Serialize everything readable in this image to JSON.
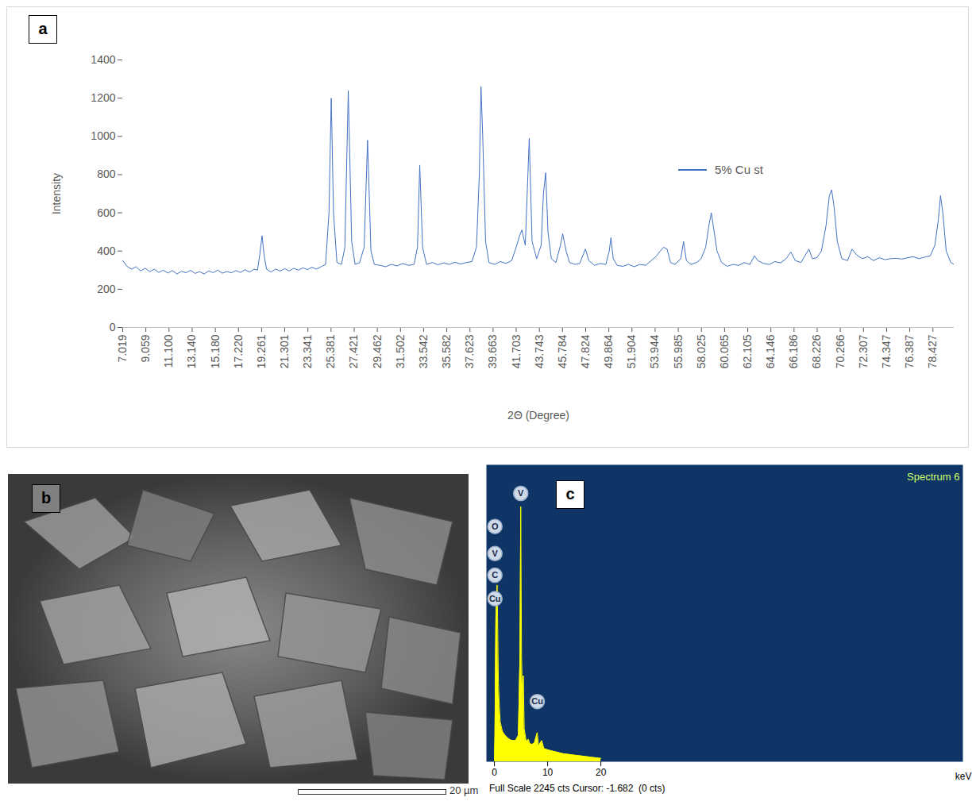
{
  "chart_data": [
    {
      "panel": "a",
      "type": "line",
      "x_label": "2Θ (Degree)",
      "y_label": "Intensity",
      "xlim": [
        7.019,
        80.3
      ],
      "xticks": [
        7.019,
        9.059,
        {
          "value": 11.1,
          "label": "11.100"
        },
        {
          "value": 13.14,
          "label": "13.140"
        },
        {
          "value": 15.18,
          "label": "15.180"
        },
        {
          "value": 17.22,
          "label": "17.220"
        },
        19.261,
        21.301,
        23.341,
        25.381,
        27.421,
        29.462,
        31.502,
        33.542,
        35.582,
        37.623,
        39.663,
        41.703,
        43.743,
        45.784,
        47.824,
        49.864,
        51.904,
        53.944,
        55.985,
        58.025,
        60.065,
        62.105,
        64.146,
        66.186,
        68.226,
        70.266,
        72.307,
        74.347,
        76.387,
        78.427
      ],
      "ylim": [
        0,
        1400
      ],
      "yticks": [
        0,
        200,
        400,
        600,
        800,
        1000,
        1200,
        1400
      ],
      "grid": false,
      "legend": "top-right",
      "series": [
        {
          "name": "5% Cu st",
          "color": "#4472c4",
          "x": [
            7.02,
            7.4,
            7.8,
            8.2,
            8.6,
            9.0,
            9.4,
            9.8,
            10.2,
            10.6,
            11.0,
            11.4,
            11.8,
            12.2,
            12.6,
            13.0,
            13.4,
            13.8,
            14.2,
            14.6,
            15.0,
            15.4,
            15.8,
            16.2,
            16.6,
            17.0,
            17.4,
            17.8,
            18.2,
            18.6,
            18.9,
            19.1,
            19.3,
            19.5,
            19.7,
            20.1,
            20.5,
            20.9,
            21.3,
            21.7,
            22.1,
            22.5,
            22.9,
            23.3,
            23.7,
            24.1,
            24.5,
            24.9,
            25.2,
            25.4,
            25.6,
            25.9,
            26.3,
            26.6,
            26.9,
            27.2,
            27.5,
            27.9,
            28.3,
            28.6,
            28.9,
            29.2,
            29.7,
            30.2,
            30.7,
            31.2,
            31.7,
            32.2,
            32.7,
            33.0,
            33.2,
            33.45,
            33.8,
            34.3,
            34.8,
            35.3,
            35.8,
            36.3,
            36.8,
            37.3,
            37.8,
            38.2,
            38.45,
            38.6,
            38.75,
            39.0,
            39.3,
            39.8,
            40.3,
            40.8,
            41.3,
            41.7,
            42.0,
            42.2,
            42.5,
            42.85,
            43.1,
            43.5,
            43.9,
            44.1,
            44.3,
            44.5,
            44.8,
            45.2,
            45.6,
            45.8,
            46.1,
            46.4,
            46.9,
            47.3,
            47.6,
            47.8,
            48.1,
            48.6,
            49.1,
            49.6,
            49.9,
            50.05,
            50.25,
            50.6,
            51.1,
            51.6,
            52.1,
            52.6,
            53.1,
            53.6,
            54.0,
            54.4,
            54.7,
            55.0,
            55.3,
            55.7,
            56.2,
            56.45,
            56.7,
            57.1,
            57.6,
            58.0,
            58.4,
            58.7,
            58.9,
            59.1,
            59.4,
            59.8,
            60.3,
            60.8,
            61.3,
            61.8,
            62.3,
            62.7,
            63.0,
            63.5,
            64.0,
            64.5,
            65.0,
            65.5,
            65.9,
            66.3,
            66.8,
            67.2,
            67.5,
            67.8,
            68.2,
            68.6,
            69.0,
            69.3,
            69.5,
            69.7,
            70.0,
            70.4,
            70.9,
            71.3,
            71.7,
            72.2,
            72.7,
            73.2,
            73.7,
            74.2,
            74.7,
            75.2,
            75.7,
            76.2,
            76.7,
            77.2,
            77.7,
            78.2,
            78.6,
            78.9,
            79.1,
            79.3,
            79.6,
            80.0,
            80.3
          ],
          "values": [
            350,
            320,
            305,
            318,
            296,
            310,
            292,
            305,
            288,
            300,
            285,
            298,
            280,
            294,
            286,
            299,
            283,
            292,
            280,
            296,
            287,
            300,
            284,
            293,
            286,
            298,
            288,
            302,
            290,
            305,
            300,
            380,
            480,
            370,
            305,
            290,
            306,
            295,
            308,
            296,
            310,
            300,
            312,
            303,
            315,
            305,
            318,
            330,
            600,
            1200,
            600,
            340,
            330,
            420,
            1240,
            450,
            330,
            340,
            420,
            980,
            400,
            330,
            325,
            318,
            330,
            322,
            335,
            325,
            330,
            420,
            850,
            420,
            330,
            340,
            328,
            338,
            330,
            342,
            332,
            340,
            345,
            420,
            800,
            1260,
            1000,
            450,
            340,
            330,
            345,
            335,
            350,
            420,
            480,
            510,
            430,
            990,
            450,
            360,
            430,
            700,
            810,
            500,
            360,
            340,
            430,
            490,
            400,
            340,
            330,
            335,
            380,
            410,
            350,
            325,
            335,
            330,
            400,
            470,
            360,
            325,
            320,
            330,
            318,
            330,
            325,
            350,
            370,
            400,
            420,
            410,
            340,
            330,
            360,
            450,
            350,
            330,
            340,
            360,
            420,
            540,
            600,
            520,
            400,
            340,
            320,
            330,
            325,
            340,
            330,
            375,
            350,
            335,
            330,
            345,
            338,
            360,
            395,
            350,
            340,
            380,
            410,
            360,
            365,
            400,
            530,
            690,
            720,
            640,
            450,
            360,
            350,
            410,
            380,
            360,
            370,
            350,
            365,
            355,
            360,
            362,
            358,
            365,
            370,
            360,
            368,
            375,
            430,
            560,
            690,
            600,
            400,
            340,
            330
          ]
        }
      ]
    },
    {
      "panel": "c",
      "type": "area",
      "title": "Spectrum 6",
      "x_label": "keV",
      "xlim": [
        -1.5,
        88
      ],
      "xticks": [
        0,
        10,
        20
      ],
      "ylim": [
        0,
        2245
      ],
      "tick_labels": "x",
      "grid": false,
      "color": "#ffff00",
      "x": [
        0,
        0.1,
        0.2,
        0.28,
        0.4,
        0.52,
        0.6,
        0.75,
        0.93,
        1.1,
        1.5,
        2,
        2.5,
        3,
        3.5,
        4,
        4.5,
        4.8,
        4.95,
        5.1,
        5.3,
        5.43,
        5.6,
        6,
        6.4,
        6.6,
        7,
        7.5,
        8.05,
        8.3,
        8.9,
        9.3,
        10,
        11,
        12,
        13,
        14,
        15,
        16,
        17,
        18,
        19,
        20
      ],
      "values": [
        0,
        200,
        700,
        1100,
        1250,
        1336,
        1100,
        600,
        420,
        300,
        230,
        200,
        180,
        165,
        160,
        160,
        200,
        800,
        1930,
        800,
        400,
        650,
        250,
        150,
        170,
        140,
        130,
        140,
        220,
        120,
        160,
        100,
        90,
        80,
        70,
        60,
        55,
        50,
        45,
        40,
        35,
        30,
        25
      ],
      "annotations": [
        {
          "text": "O",
          "x": 0.1,
          "y": 1779
        },
        {
          "text": "V",
          "x": 0.1,
          "y": 1574
        },
        {
          "text": "C",
          "x": 0.1,
          "y": 1410
        },
        {
          "text": "Cu",
          "x": 0.1,
          "y": 1233
        },
        {
          "text": "V",
          "x": 4.95,
          "y": 2029
        },
        {
          "text": "Cu",
          "x": 8.05,
          "y": 455
        }
      ],
      "footer": "Full Scale 2245 cts Cursor: -1.682  (0 cts)"
    }
  ],
  "image": {
    "panel": "b",
    "scale_bar": "20 µm"
  }
}
